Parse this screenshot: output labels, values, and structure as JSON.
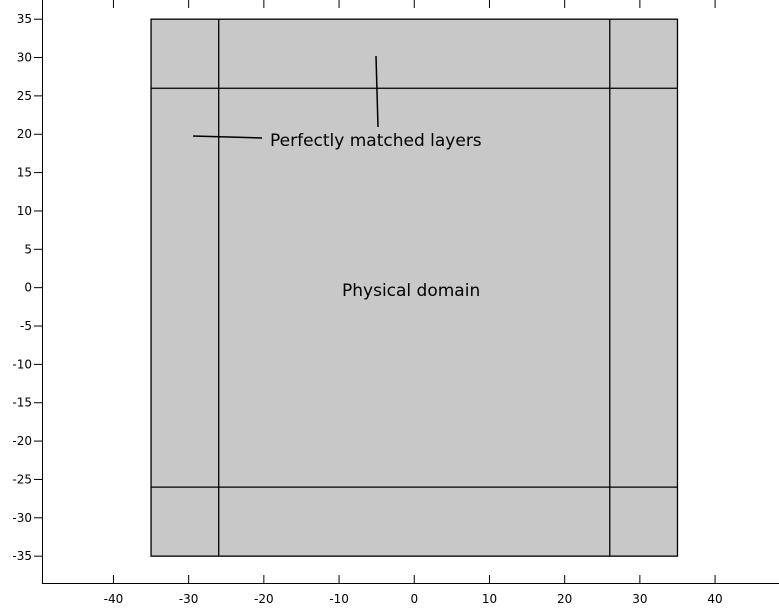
{
  "diagram": {
    "labels": {
      "pml": "Perfectly matched layers",
      "physical": "Physical domain"
    },
    "geometry_data": {
      "outer_square": [
        -35,
        35
      ],
      "inner_square": [
        -26,
        26
      ]
    },
    "axes": {
      "x_range": [
        -49.5,
        48.5
      ],
      "y_range": [
        -38.5,
        37.5
      ],
      "x_ticks": [
        -40,
        -30,
        -20,
        -10,
        0,
        10,
        20,
        30,
        40
      ],
      "y_ticks": [
        35,
        30,
        25,
        20,
        15,
        10,
        5,
        0,
        -5,
        -10,
        -15,
        -20,
        -25,
        -30,
        -35
      ]
    },
    "colors": {
      "domain_fill": "#c8c8c8",
      "line": "#000000",
      "background": "#ffffff"
    }
  }
}
